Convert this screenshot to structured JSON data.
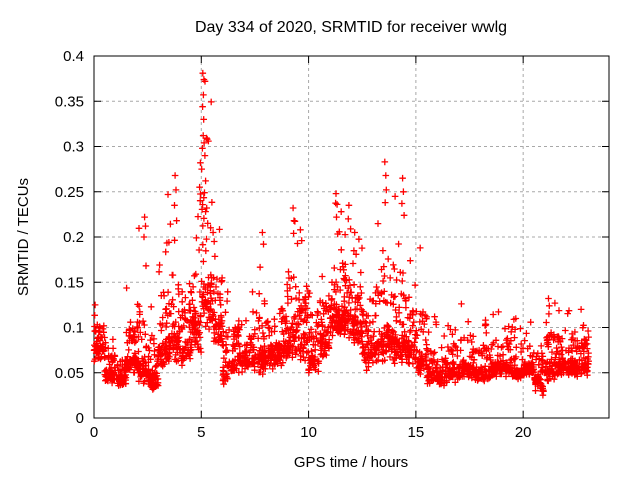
{
  "page": {
    "background": "#ffffff",
    "text_color": "#000000"
  },
  "chart_data": {
    "type": "scatter",
    "title": "Day 334 of 2020, SRMTID for receiver wwlg",
    "xlabel": "GPS time / hours",
    "ylabel": "SRMTID / TECUs",
    "xlim": [
      0,
      24
    ],
    "ylim": [
      0,
      0.4
    ],
    "xticks": [
      0,
      5,
      10,
      15,
      20
    ],
    "xtick_labels": [
      "0",
      "5",
      "10",
      "15",
      "20"
    ],
    "yticks": [
      0,
      0.05,
      0.1,
      0.15,
      0.2,
      0.25,
      0.3,
      0.35,
      0.4
    ],
    "ytick_labels": [
      "0",
      "0.05",
      "0.1",
      "0.15",
      "0.2",
      "0.25",
      "0.3",
      "0.35",
      "0.4"
    ],
    "grid": true,
    "grid_style": "dashed",
    "grid_color": "#a8a8a8",
    "border_color": "#000000",
    "legend": "none",
    "marker": {
      "shape": "plus",
      "color": "#ff0000",
      "size": 7,
      "stroke_width": 1.3
    },
    "x_data_min": 0.0,
    "x_data_max": 23.05,
    "y_data_min": 0.012,
    "y_data_max": 0.381,
    "series": [
      {
        "name": "SRMTID",
        "color": "#ff0000",
        "density_bins_format": [
          "x_start_hours",
          "x_end_hours",
          "point_count",
          "y_low_TECU",
          "y_typical_TECU",
          "y_high_TECU"
        ],
        "density_bins": [
          [
            0.0,
            0.5,
            60,
            0.055,
            0.088,
            0.125
          ],
          [
            0.5,
            1.0,
            55,
            0.035,
            0.058,
            0.09
          ],
          [
            1.0,
            1.5,
            55,
            0.03,
            0.05,
            0.09
          ],
          [
            1.5,
            2.0,
            60,
            0.04,
            0.075,
            0.145
          ],
          [
            2.0,
            2.5,
            60,
            0.03,
            0.07,
            0.225
          ],
          [
            2.5,
            3.0,
            60,
            0.025,
            0.055,
            0.13
          ],
          [
            3.0,
            3.5,
            60,
            0.045,
            0.095,
            0.205
          ],
          [
            3.5,
            4.0,
            60,
            0.05,
            0.11,
            0.26
          ],
          [
            4.0,
            4.5,
            55,
            0.05,
            0.095,
            0.185
          ],
          [
            4.5,
            5.0,
            60,
            0.06,
            0.125,
            0.3
          ],
          [
            5.0,
            5.5,
            65,
            0.08,
            0.165,
            0.375
          ],
          [
            5.5,
            6.0,
            55,
            0.065,
            0.125,
            0.21
          ],
          [
            6.0,
            6.5,
            50,
            0.028,
            0.07,
            0.14
          ],
          [
            6.5,
            7.0,
            50,
            0.04,
            0.078,
            0.15
          ],
          [
            7.0,
            7.5,
            50,
            0.045,
            0.08,
            0.14
          ],
          [
            7.5,
            8.0,
            55,
            0.04,
            0.082,
            0.2
          ],
          [
            8.0,
            8.5,
            55,
            0.045,
            0.085,
            0.15
          ],
          [
            8.5,
            9.0,
            55,
            0.05,
            0.09,
            0.17
          ],
          [
            9.0,
            9.5,
            60,
            0.055,
            0.108,
            0.225
          ],
          [
            9.5,
            10.0,
            55,
            0.05,
            0.1,
            0.21
          ],
          [
            10.0,
            10.5,
            55,
            0.04,
            0.078,
            0.14
          ],
          [
            10.5,
            11.0,
            60,
            0.06,
            0.1,
            0.18
          ],
          [
            11.0,
            11.5,
            65,
            0.08,
            0.13,
            0.24
          ],
          [
            11.5,
            12.0,
            65,
            0.08,
            0.132,
            0.235
          ],
          [
            12.0,
            12.5,
            60,
            0.07,
            0.118,
            0.205
          ],
          [
            12.5,
            13.0,
            55,
            0.045,
            0.09,
            0.165
          ],
          [
            13.0,
            13.5,
            55,
            0.05,
            0.1,
            0.22
          ],
          [
            13.5,
            14.0,
            60,
            0.055,
            0.108,
            0.27
          ],
          [
            14.0,
            14.5,
            60,
            0.05,
            0.1,
            0.26
          ],
          [
            14.5,
            15.0,
            55,
            0.05,
            0.092,
            0.2
          ],
          [
            15.0,
            15.5,
            50,
            0.04,
            0.078,
            0.185
          ],
          [
            15.5,
            16.0,
            50,
            0.032,
            0.06,
            0.115
          ],
          [
            16.0,
            16.5,
            50,
            0.03,
            0.055,
            0.105
          ],
          [
            16.5,
            17.0,
            50,
            0.035,
            0.06,
            0.12
          ],
          [
            17.0,
            17.5,
            50,
            0.04,
            0.065,
            0.13
          ],
          [
            17.5,
            18.0,
            50,
            0.035,
            0.06,
            0.105
          ],
          [
            18.0,
            18.5,
            50,
            0.035,
            0.062,
            0.11
          ],
          [
            18.5,
            19.0,
            50,
            0.04,
            0.065,
            0.13
          ],
          [
            19.0,
            19.5,
            50,
            0.04,
            0.065,
            0.125
          ],
          [
            19.5,
            20.0,
            50,
            0.035,
            0.06,
            0.11
          ],
          [
            20.0,
            20.5,
            50,
            0.04,
            0.065,
            0.12
          ],
          [
            20.5,
            21.0,
            50,
            0.018,
            0.058,
            0.115
          ],
          [
            21.0,
            21.5,
            55,
            0.03,
            0.068,
            0.135
          ],
          [
            21.5,
            22.0,
            50,
            0.04,
            0.07,
            0.125
          ],
          [
            22.0,
            22.5,
            55,
            0.04,
            0.068,
            0.12
          ],
          [
            22.5,
            23.0,
            55,
            0.038,
            0.066,
            0.125
          ],
          [
            23.0,
            23.05,
            8,
            0.05,
            0.07,
            0.1
          ]
        ],
        "peak_points": [
          [
            0.05,
            0.125
          ],
          [
            2.33,
            0.2
          ],
          [
            2.36,
            0.222
          ],
          [
            2.4,
            0.212
          ],
          [
            3.45,
            0.247
          ],
          [
            3.75,
            0.235
          ],
          [
            3.78,
            0.268
          ],
          [
            3.82,
            0.252
          ],
          [
            3.85,
            0.218
          ],
          [
            4.92,
            0.255
          ],
          [
            4.96,
            0.282
          ],
          [
            5.02,
            0.275
          ],
          [
            5.05,
            0.298
          ],
          [
            5.06,
            0.344
          ],
          [
            5.07,
            0.381
          ],
          [
            5.09,
            0.312
          ],
          [
            5.1,
            0.357
          ],
          [
            5.11,
            0.33
          ],
          [
            5.12,
            0.374
          ],
          [
            5.13,
            0.304
          ],
          [
            5.15,
            0.249
          ],
          [
            5.17,
            0.29
          ],
          [
            5.2,
            0.262
          ],
          [
            5.25,
            0.232
          ],
          [
            5.3,
            0.215
          ],
          [
            5.55,
            0.205
          ],
          [
            5.6,
            0.195
          ],
          [
            7.85,
            0.205
          ],
          [
            7.9,
            0.192
          ],
          [
            9.28,
            0.232
          ],
          [
            9.3,
            0.204
          ],
          [
            9.32,
            0.218
          ],
          [
            9.62,
            0.208
          ],
          [
            9.68,
            0.196
          ],
          [
            11.28,
            0.248
          ],
          [
            11.3,
            0.222
          ],
          [
            11.33,
            0.236
          ],
          [
            11.52,
            0.228
          ],
          [
            11.85,
            0.22
          ],
          [
            11.88,
            0.235
          ],
          [
            12.15,
            0.205
          ],
          [
            13.55,
            0.283
          ],
          [
            13.57,
            0.238
          ],
          [
            13.6,
            0.268
          ],
          [
            13.62,
            0.252
          ],
          [
            14.35,
            0.237
          ],
          [
            14.38,
            0.265
          ],
          [
            14.42,
            0.25
          ],
          [
            14.45,
            0.224
          ],
          [
            15.2,
            0.188
          ],
          [
            21.18,
            0.132
          ],
          [
            21.2,
            0.115
          ],
          [
            21.22,
            0.124
          ],
          [
            22.7,
            0.12
          ]
        ]
      }
    ]
  }
}
